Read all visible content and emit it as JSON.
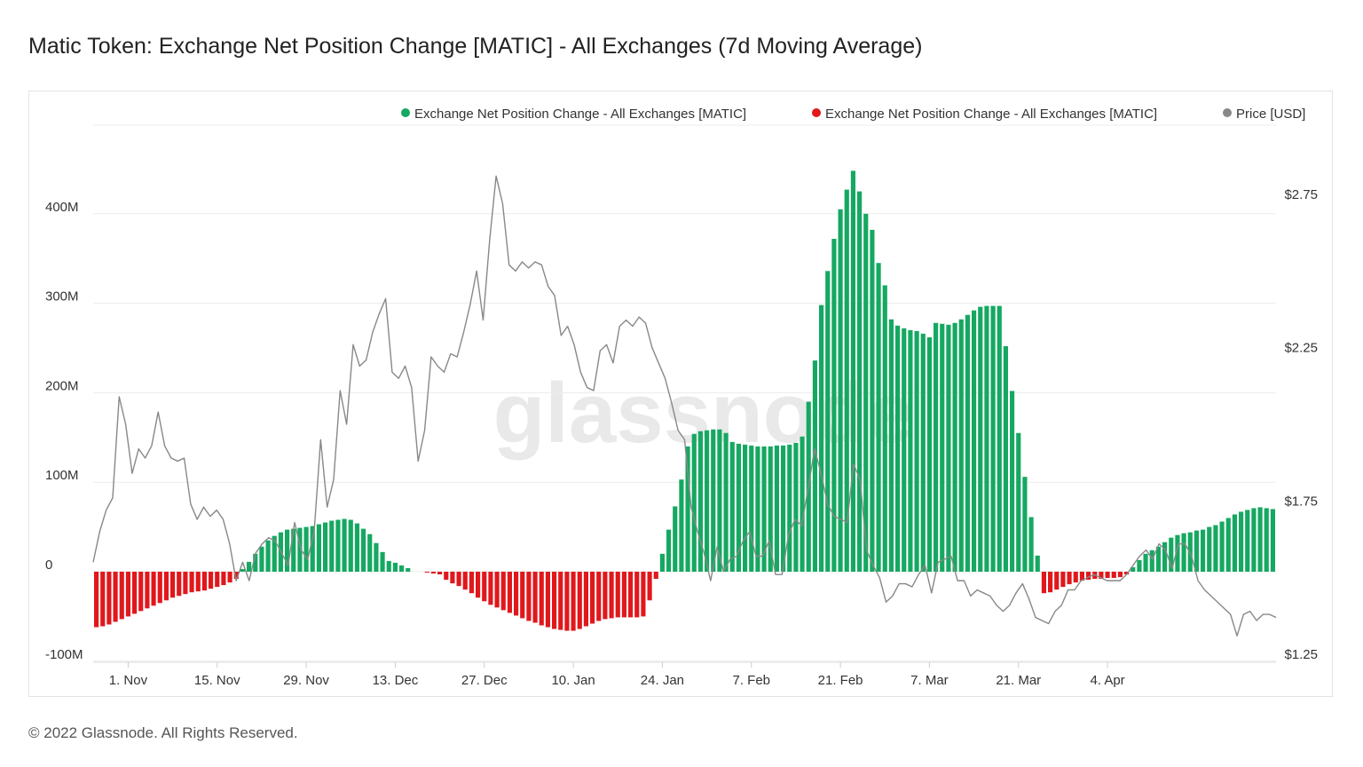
{
  "title": "Matic Token: Exchange Net Position Change [MATIC] - All Exchanges (7d Moving Average)",
  "footer": "© 2022 Glassnode. All Rights Reserved.",
  "watermark": "glassnode",
  "colors": {
    "positive": "#15a861",
    "negative": "#e0181c",
    "price": "#888888",
    "grid": "#ececec"
  },
  "chart_data": {
    "type": "bar",
    "legend": [
      {
        "label": "Exchange Net Position Change - All Exchanges [MATIC]",
        "color": "#15a861"
      },
      {
        "label": "Exchange Net Position Change - All Exchanges [MATIC]",
        "color": "#e0181c"
      },
      {
        "label": "Price [USD]",
        "color": "#888888"
      }
    ],
    "legend_position": "top-right",
    "grid": true,
    "x_ticks": [
      "1. Nov",
      "15. Nov",
      "29. Nov",
      "13. Dec",
      "27. Dec",
      "10. Jan",
      "24. Jan",
      "7. Feb",
      "21. Feb",
      "7. Mar",
      "21. Mar",
      "4. Apr"
    ],
    "y_left_ticks": [
      "-100M",
      "0",
      "100M",
      "200M",
      "300M",
      "400M"
    ],
    "y_left_lim": [
      -100,
      500
    ],
    "y_left_unit": "M MATIC",
    "y_right_ticks": [
      "$1.25",
      "$1.75",
      "$2.25",
      "$2.75"
    ],
    "y_right_lim": [
      1.25,
      3.0
    ],
    "start_date": "2021-10-27",
    "bars_M": [
      -62,
      -61,
      -59,
      -56,
      -53,
      -50,
      -47,
      -44,
      -41,
      -38,
      -35,
      -32,
      -29,
      -27,
      -25,
      -23,
      -22,
      -21,
      -19,
      -17,
      -15,
      -12,
      -8,
      3,
      11,
      20,
      28,
      35,
      40,
      44,
      47,
      48,
      49,
      50,
      51,
      53,
      55,
      57,
      58,
      59,
      58,
      54,
      48,
      42,
      32,
      22,
      12,
      10,
      7,
      4,
      0,
      0,
      -1,
      -2,
      -3,
      -9,
      -13,
      -16,
      -20,
      -24,
      -29,
      -33,
      -37,
      -40,
      -43,
      -46,
      -49,
      -52,
      -55,
      -57,
      -60,
      -62,
      -64,
      -65,
      -66,
      -66,
      -64,
      -61,
      -58,
      -55,
      -53,
      -52,
      -51,
      -51,
      -51,
      -51,
      -50,
      -32,
      -8,
      20,
      47,
      73,
      103,
      140,
      154,
      157,
      158,
      159,
      159,
      155,
      145,
      143,
      142,
      141,
      140,
      140,
      140,
      141,
      141,
      142,
      144,
      151,
      190,
      236,
      298,
      336,
      372,
      405,
      427,
      448,
      425,
      400,
      382,
      345,
      320,
      282,
      275,
      272,
      270,
      269,
      266,
      262,
      278,
      277,
      276,
      278,
      282,
      287,
      292,
      296,
      297,
      297,
      297,
      252,
      202,
      155,
      106,
      61,
      18,
      -24,
      -23,
      -20,
      -17,
      -14,
      -12,
      -10,
      -9,
      -8,
      -8,
      -7,
      -7,
      -6,
      -3,
      5,
      13,
      20,
      24,
      28,
      33,
      38,
      41,
      43,
      44,
      46,
      47,
      50,
      52,
      56,
      60,
      64,
      67,
      69,
      71,
      72,
      71,
      70
    ],
    "price_usd": [
      1.55,
      1.65,
      1.72,
      1.76,
      2.09,
      2.0,
      1.84,
      1.92,
      1.89,
      1.93,
      2.04,
      1.93,
      1.89,
      1.88,
      1.89,
      1.74,
      1.69,
      1.73,
      1.7,
      1.72,
      1.69,
      1.61,
      1.49,
      1.55,
      1.49,
      1.58,
      1.61,
      1.63,
      1.62,
      1.58,
      1.54,
      1.68,
      1.59,
      1.56,
      1.65,
      1.95,
      1.73,
      1.82,
      2.11,
      2.0,
      2.26,
      2.19,
      2.21,
      2.3,
      2.36,
      2.41,
      2.17,
      2.15,
      2.19,
      2.12,
      1.88,
      1.98,
      2.22,
      2.19,
      2.17,
      2.23,
      2.22,
      2.3,
      2.39,
      2.5,
      2.34,
      2.6,
      2.81,
      2.72,
      2.52,
      2.5,
      2.53,
      2.51,
      2.53,
      2.52,
      2.45,
      2.42,
      2.29,
      2.32,
      2.26,
      2.17,
      2.12,
      2.11,
      2.24,
      2.26,
      2.2,
      2.32,
      2.34,
      2.32,
      2.35,
      2.33,
      2.25,
      2.2,
      2.15,
      2.07,
      1.98,
      1.95,
      1.73,
      1.65,
      1.58,
      1.49,
      1.6,
      1.52,
      1.56,
      1.57,
      1.62,
      1.65,
      1.57,
      1.57,
      1.62,
      1.51,
      1.51,
      1.64,
      1.69,
      1.67,
      1.79,
      1.92,
      1.84,
      1.74,
      1.7,
      1.69,
      1.68,
      1.87,
      1.82,
      1.59,
      1.54,
      1.5,
      1.42,
      1.44,
      1.48,
      1.48,
      1.47,
      1.51,
      1.54,
      1.45,
      1.55,
      1.56,
      1.57,
      1.49,
      1.49,
      1.44,
      1.46,
      1.45,
      1.44,
      1.41,
      1.39,
      1.41,
      1.45,
      1.48,
      1.43,
      1.37,
      1.36,
      1.35,
      1.39,
      1.41,
      1.46,
      1.46,
      1.49,
      1.5,
      1.51,
      1.5,
      1.49,
      1.49,
      1.49,
      1.51,
      1.54,
      1.57,
      1.59,
      1.56,
      1.61,
      1.59,
      1.53,
      1.61,
      1.61,
      1.57,
      1.49,
      1.46,
      1.44,
      1.42,
      1.4,
      1.38,
      1.31,
      1.38,
      1.39,
      1.36,
      1.38,
      1.38,
      1.37
    ]
  }
}
